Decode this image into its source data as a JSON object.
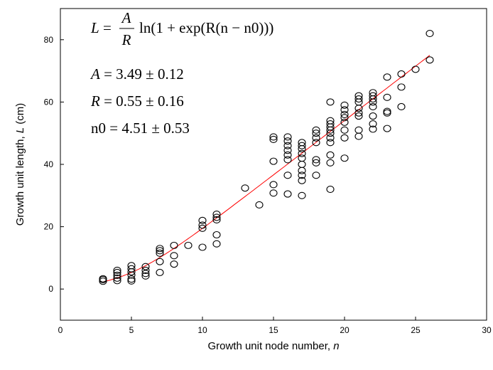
{
  "chart_data": {
    "type": "scatter",
    "xlabel_text": "Growth unit node number, ",
    "xlabel_var": "n",
    "ylabel_text_a": "Growth unit length, ",
    "ylabel_var": "L",
    "ylabel_text_b": " (cm)",
    "xlim": [
      0,
      30
    ],
    "ylim": [
      -10,
      90
    ],
    "x_ticks": [
      0,
      5,
      10,
      15,
      20,
      25,
      30
    ],
    "y_ticks": [
      0,
      20,
      40,
      60,
      80
    ],
    "grid": false,
    "annotations": {
      "equation": {
        "lhs": "L",
        "eq": " = ",
        "num": "A",
        "den": "R",
        "rhs": "ln(1 + exp(R(n − n0)))"
      },
      "param_a": {
        "var": "A",
        "text": " = 3.49 ± 0.12"
      },
      "param_r": {
        "var": "R",
        "text": " = 0.55 ± 0.16"
      },
      "param_n0": {
        "text": "n0 = 4.51 ± 0.53"
      }
    },
    "fit": {
      "A": 3.49,
      "R": 0.55,
      "n0": 4.51,
      "color": "#ff0000"
    },
    "points": [
      [
        3,
        2.5
      ],
      [
        3,
        3.0
      ],
      [
        3,
        3.3
      ],
      [
        4,
        2.7
      ],
      [
        4,
        3.5
      ],
      [
        4,
        4.4
      ],
      [
        4,
        5.3
      ],
      [
        4,
        6.0
      ],
      [
        5,
        2.6
      ],
      [
        5,
        3.2
      ],
      [
        5,
        4.5
      ],
      [
        5,
        5.5
      ],
      [
        5,
        6.5
      ],
      [
        5,
        7.5
      ],
      [
        6,
        4.2
      ],
      [
        6,
        5.0
      ],
      [
        6,
        6.0
      ],
      [
        6,
        7.2
      ],
      [
        7,
        5.3
      ],
      [
        7,
        8.8
      ],
      [
        7,
        11.5
      ],
      [
        7,
        12.3
      ],
      [
        7,
        13.0
      ],
      [
        8,
        8.0
      ],
      [
        8,
        10.7
      ],
      [
        8,
        14.0
      ],
      [
        9,
        14.0
      ],
      [
        10,
        13.4
      ],
      [
        10,
        19.5
      ],
      [
        10,
        20.5
      ],
      [
        10,
        22.0
      ],
      [
        11,
        14.5
      ],
      [
        11,
        17.4
      ],
      [
        11,
        22.2
      ],
      [
        11,
        23.0
      ],
      [
        11,
        24.0
      ],
      [
        13,
        32.4
      ],
      [
        14,
        27.0
      ],
      [
        15,
        30.8
      ],
      [
        15,
        33.5
      ],
      [
        15,
        41.0
      ],
      [
        15,
        48.0
      ],
      [
        15,
        48.8
      ],
      [
        16,
        30.5
      ],
      [
        16,
        36.5
      ],
      [
        16,
        41.5
      ],
      [
        16,
        43.0
      ],
      [
        16,
        44.5
      ],
      [
        16,
        46.0
      ],
      [
        16,
        47.5
      ],
      [
        16,
        48.8
      ],
      [
        17,
        30.0
      ],
      [
        17,
        34.8
      ],
      [
        17,
        36.5
      ],
      [
        17,
        38.0
      ],
      [
        17,
        40.0
      ],
      [
        17,
        42.0
      ],
      [
        17,
        43.5
      ],
      [
        17,
        45.0
      ],
      [
        17,
        46.0
      ],
      [
        17,
        47.0
      ],
      [
        18,
        36.5
      ],
      [
        18,
        40.5
      ],
      [
        18,
        41.5
      ],
      [
        18,
        47.0
      ],
      [
        18,
        48.5
      ],
      [
        18,
        50.0
      ],
      [
        18,
        51.0
      ],
      [
        19,
        32.0
      ],
      [
        19,
        40.5
      ],
      [
        19,
        43.0
      ],
      [
        19,
        47.0
      ],
      [
        19,
        48.5
      ],
      [
        19,
        50.0
      ],
      [
        19,
        51.0
      ],
      [
        19,
        52.0
      ],
      [
        19,
        53.0
      ],
      [
        19,
        54.0
      ],
      [
        19,
        60.0
      ],
      [
        20,
        42.0
      ],
      [
        20,
        48.5
      ],
      [
        20,
        51.0
      ],
      [
        20,
        53.5
      ],
      [
        20,
        55.0
      ],
      [
        20,
        56.0
      ],
      [
        20,
        57.5
      ],
      [
        20,
        59.0
      ],
      [
        21,
        49.0
      ],
      [
        21,
        51.0
      ],
      [
        21,
        55.5
      ],
      [
        21,
        56.5
      ],
      [
        21,
        58.0
      ],
      [
        21,
        60.0
      ],
      [
        21,
        61.0
      ],
      [
        21,
        62.0
      ],
      [
        22,
        51.3
      ],
      [
        22,
        53.0
      ],
      [
        22,
        55.5
      ],
      [
        22,
        58.5
      ],
      [
        22,
        60.0
      ],
      [
        22,
        61.0
      ],
      [
        22,
        62.0
      ],
      [
        22,
        63.0
      ],
      [
        23,
        51.5
      ],
      [
        23,
        56.5
      ],
      [
        23,
        57.0
      ],
      [
        23,
        61.5
      ],
      [
        23,
        68.0
      ],
      [
        24,
        58.5
      ],
      [
        24,
        64.8
      ],
      [
        24,
        69.0
      ],
      [
        25,
        70.5
      ],
      [
        26,
        73.5
      ],
      [
        26,
        82.0
      ]
    ]
  }
}
